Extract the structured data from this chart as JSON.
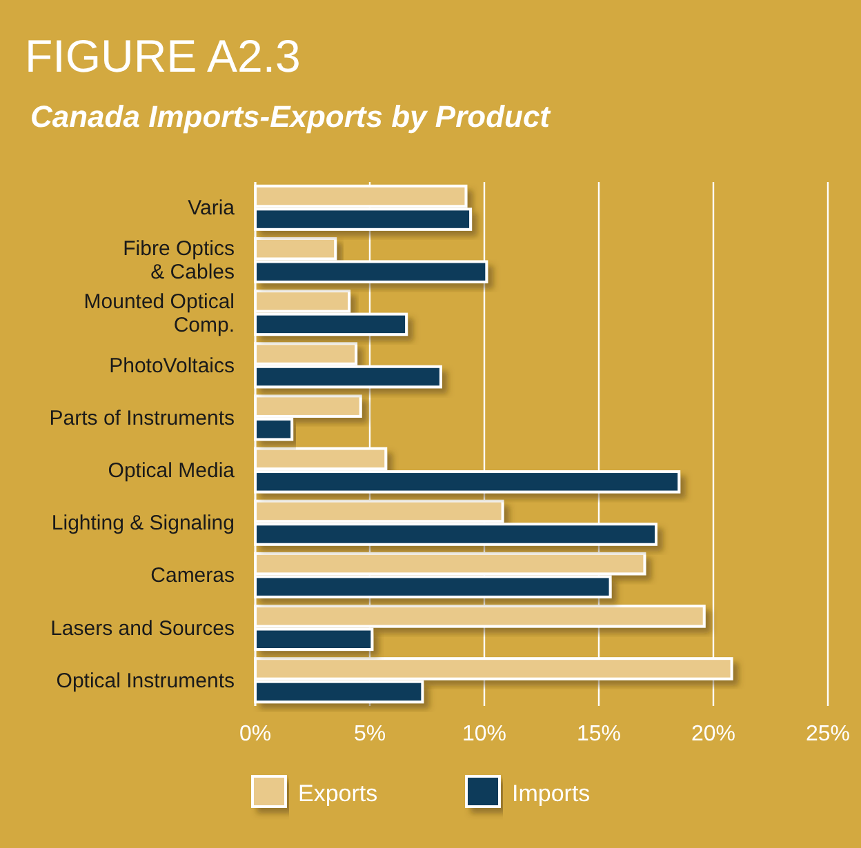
{
  "chart_data": {
    "type": "bar",
    "orientation": "horizontal",
    "title": "FIGURE A2.3",
    "subtitle": "Canada Imports-Exports by Product",
    "categories": [
      "Varia",
      "Fibre Optics\n& Cables",
      "Mounted Optical\nComp.",
      "PhotoVoltaics",
      "Parts of Instruments",
      "Optical Media",
      "Lighting & Signaling",
      "Cameras",
      "Lasers and Sources",
      "Optical Instruments"
    ],
    "series": [
      {
        "name": "Exports",
        "color": "#e9c98a",
        "values": [
          9.2,
          3.5,
          4.1,
          4.4,
          4.6,
          5.7,
          10.8,
          17.0,
          19.6,
          20.8
        ]
      },
      {
        "name": "Imports",
        "color": "#0e3a5a",
        "values": [
          9.4,
          10.1,
          6.6,
          8.1,
          1.6,
          18.5,
          17.5,
          15.5,
          5.1,
          7.3
        ]
      }
    ],
    "xlim": [
      0,
      25
    ],
    "xticks": [
      {
        "value": 0,
        "label": "0%"
      },
      {
        "value": 5,
        "label": "5%"
      },
      {
        "value": 10,
        "label": "10%"
      },
      {
        "value": 15,
        "label": "15%"
      },
      {
        "value": 20,
        "label": "20%"
      },
      {
        "value": 25,
        "label": "25%"
      }
    ],
    "grid": "x",
    "legend": "bottom"
  }
}
